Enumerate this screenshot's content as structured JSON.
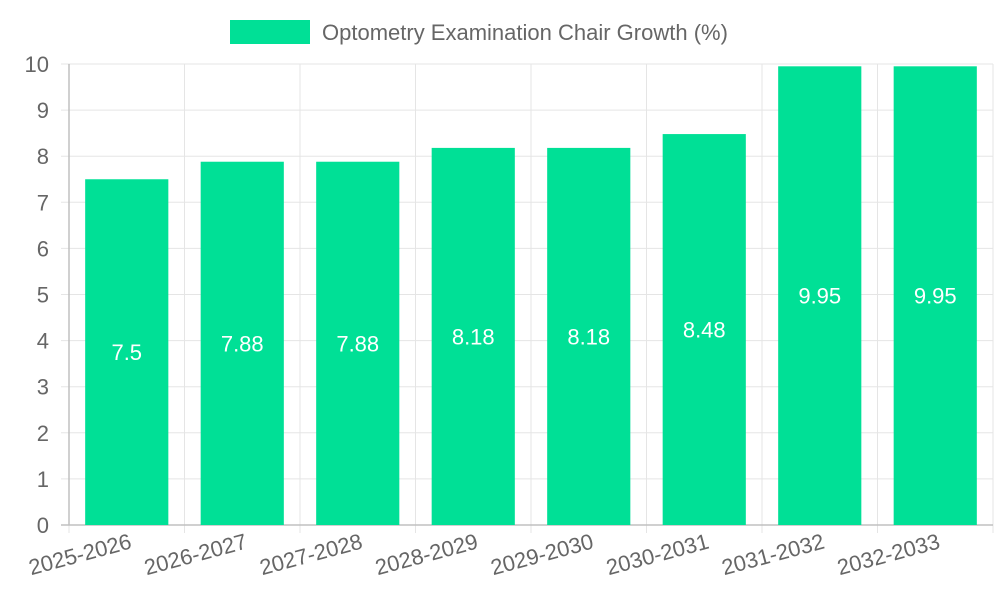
{
  "chart_data": {
    "type": "bar",
    "title": "",
    "legend": {
      "label": "Optometry Examination Chair Growth (%)",
      "position": "top"
    },
    "categories": [
      "2025-2026",
      "2026-2027",
      "2027-2028",
      "2028-2029",
      "2029-2030",
      "2030-2031",
      "2031-2032",
      "2032-2033"
    ],
    "series": [
      {
        "name": "Optometry Examination Chair Growth (%)",
        "values": [
          7.5,
          7.88,
          7.88,
          8.18,
          8.18,
          8.48,
          9.95,
          9.95
        ],
        "color": "#00e096"
      }
    ],
    "data_labels": [
      "7.5",
      "7.88",
      "7.88",
      "8.18",
      "8.18",
      "8.48",
      "9.95",
      "9.95"
    ],
    "y_ticks": [
      "0",
      "1",
      "2",
      "3",
      "4",
      "5",
      "6",
      "7",
      "8",
      "9",
      "10"
    ],
    "ylim": [
      0,
      10
    ],
    "xlabel": "",
    "ylabel": "",
    "grid": true,
    "colors": {
      "bar": "#00e096",
      "grid": "#e5e5e5",
      "axis": "#c0c0c0",
      "text": "#666666",
      "data_label": "#ffffff"
    }
  }
}
